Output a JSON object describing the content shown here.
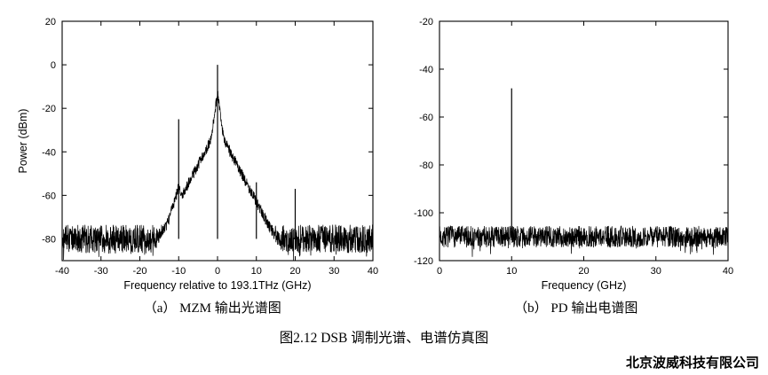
{
  "captions": {
    "a": "（a） MZM 输出光谱图",
    "b": "（b） PD 输出电谱图",
    "figure": "图2.12 DSB 调制光谱、电谱仿真图"
  },
  "watermark": {
    "text": "北京波威科技有限公司"
  },
  "chart_data": [
    {
      "name": "mzm-output-optical-spectrum",
      "type": "line",
      "title": "",
      "xlabel": "Frequency relative to 193.1THz (GHz)",
      "ylabel": "Power (dBm)",
      "xlim": [
        -40,
        40
      ],
      "ylim": [
        -90,
        20
      ],
      "xticks": [
        -40,
        -30,
        -20,
        -10,
        0,
        10,
        20,
        30,
        40
      ],
      "yticks": [
        20,
        0,
        -20,
        -40,
        -60,
        -80
      ],
      "grid": false,
      "noise": {
        "floor": -80,
        "variation": 6.5
      },
      "pedestals": [
        {
          "x": 0,
          "peak": -13,
          "slope": 13
        },
        {
          "x": 0,
          "peak": -29,
          "slope": 3.4
        },
        {
          "x": -10,
          "peak": -56,
          "slope": 6
        }
      ],
      "spikes": [
        {
          "x": 0,
          "peak": 0,
          "label": "optical carrier"
        },
        {
          "x": -10,
          "peak": -25,
          "label": "lower sideband"
        },
        {
          "x": 10,
          "peak": -54,
          "label": "upper sideband"
        },
        {
          "x": 20,
          "peak": -57,
          "label": "spur"
        }
      ],
      "samples": 1500,
      "seed": 42
    },
    {
      "name": "pd-output-electrical-spectrum",
      "type": "line",
      "title": "",
      "xlabel": "Frequency (GHz)",
      "ylabel": "",
      "xlim": [
        0,
        40
      ],
      "ylim": [
        -120,
        -20
      ],
      "xticks": [
        0,
        10,
        20,
        30,
        40
      ],
      "yticks": [
        -20,
        -40,
        -60,
        -80,
        -100,
        -120
      ],
      "grid": false,
      "noise": {
        "floor": -110,
        "variation": 4.5
      },
      "pedestals": [],
      "spikes": [
        {
          "x": 10,
          "peak": -48,
          "label": "10 GHz RF tone"
        }
      ],
      "samples": 1300,
      "seed": 7
    }
  ]
}
